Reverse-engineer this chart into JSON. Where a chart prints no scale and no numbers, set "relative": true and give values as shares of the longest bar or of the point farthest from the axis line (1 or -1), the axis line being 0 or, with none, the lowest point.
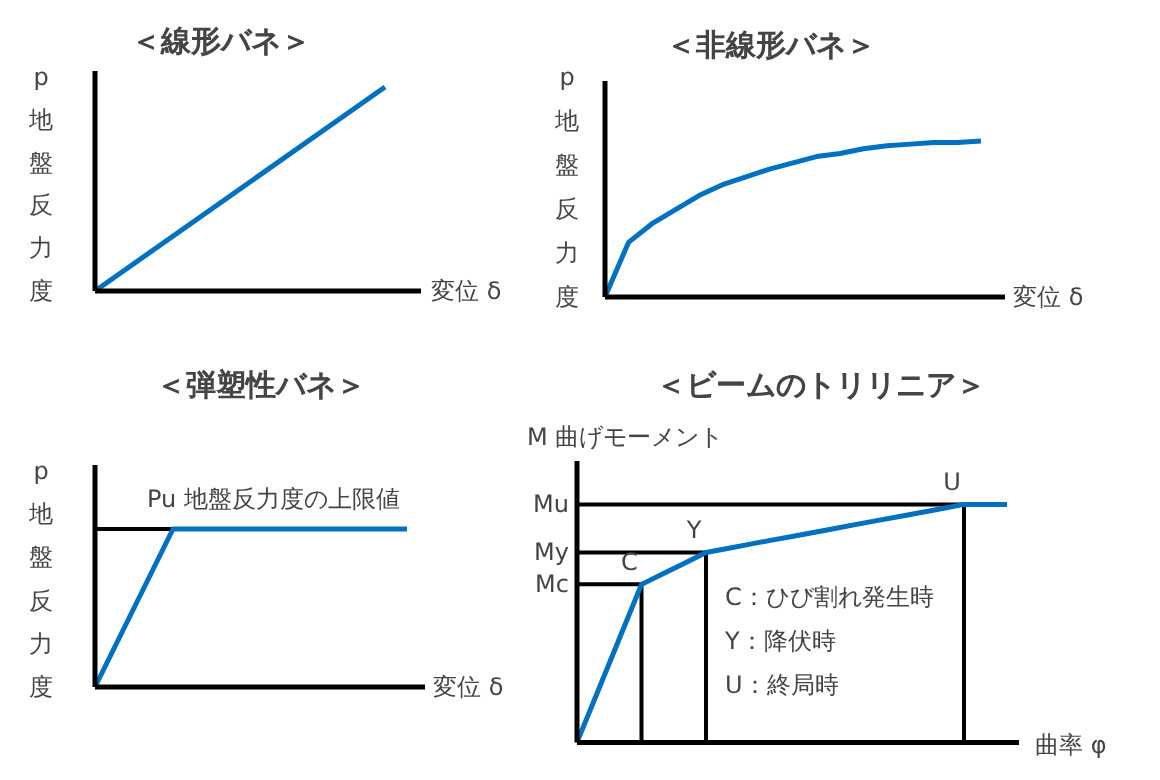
{
  "chart_data": [
    {
      "type": "line",
      "title": "＜線形バネ＞",
      "xlabel": "変位 δ",
      "ylabel": "p 地盤反力度",
      "relative": true,
      "categories": [
        null,
        null
      ],
      "series": [
        {
          "color": "#0070c0",
          "values": [
            0,
            1
          ]
        }
      ]
    },
    {
      "type": "line",
      "title": "＜非線形バネ＞",
      "xlabel": "変位 δ",
      "ylabel": "p 地盤反力度",
      "relative": true,
      "categories": [
        null,
        null,
        null,
        null,
        null,
        null,
        null,
        null,
        null,
        null,
        null,
        null,
        null,
        null,
        null,
        null,
        null
      ],
      "series": [
        {
          "color": "#0070c0",
          "values": [
            0,
            0.35,
            0.47,
            0.56,
            0.65,
            0.72,
            0.77,
            0.82,
            0.86,
            0.9,
            0.92,
            0.95,
            0.97,
            0.98,
            0.99,
            0.99,
            1
          ]
        }
      ]
    },
    {
      "type": "line",
      "title": "＜弾塑性バネ＞",
      "xlabel": "変位 δ",
      "ylabel": "p 地盤反力度",
      "relative": true,
      "categories": [
        null,
        null,
        null,
        null,
        null
      ],
      "series": [
        {
          "color": "#0070c0",
          "values": [
            0,
            1,
            1,
            1,
            1
          ]
        }
      ],
      "ref_lines": [
        {
          "axis": "y",
          "value": 1,
          "label": "Pu 地盤反力度の上限値",
          "color": "#000000"
        }
      ]
    },
    {
      "type": "line",
      "title": "＜ビームのトリリニア＞",
      "xlabel": "曲率 φ",
      "ylabel": "M 曲げモーメント",
      "relative": true,
      "categories": [
        null,
        null,
        null,
        null,
        null,
        null,
        null,
        null,
        null,
        null,
        null,
        null,
        null,
        null,
        null,
        null,
        null,
        null,
        null,
        null,
        null
      ],
      "series": [
        {
          "color": "#0070c0",
          "values": [
            0,
            0.221,
            0.443,
            0.664,
            0.709,
            0.753,
            0.798,
            0.815,
            0.832,
            0.849,
            0.865,
            0.882,
            0.899,
            0.916,
            0.933,
            0.949,
            0.966,
            0.983,
            1,
            1,
            1
          ]
        }
      ],
      "ref_lines": [
        {
          "axis": "y",
          "value": 0.664,
          "label": "Mc",
          "color": "#000000"
        },
        {
          "axis": "y",
          "value": 0.798,
          "label": "My",
          "color": "#000000"
        },
        {
          "axis": "y",
          "value": 1,
          "label": "Mu",
          "color": "#000000"
        }
      ],
      "annotations": [
        {
          "text": "C",
          "y": 0.664
        },
        {
          "text": "Y",
          "y": 0.798
        },
        {
          "text": "U",
          "y": 1
        },
        "C：ひび割れ発生時",
        "Y：降伏時",
        "U：終局時"
      ]
    }
  ]
}
